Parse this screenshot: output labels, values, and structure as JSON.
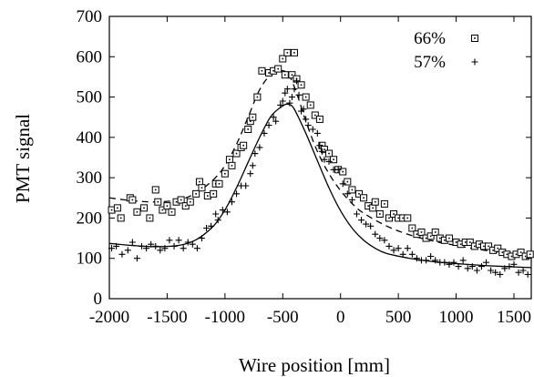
{
  "chart_data": {
    "type": "scatter",
    "xlabel": "Wire position [mm]",
    "ylabel": "PMT signal",
    "xlim": [
      -2000,
      1650
    ],
    "ylim": [
      0,
      700
    ],
    "xticks": [
      -2000,
      -1500,
      -1000,
      -500,
      0,
      500,
      1000,
      1500
    ],
    "yticks": [
      0,
      100,
      200,
      300,
      400,
      500,
      600,
      700
    ],
    "grid": false,
    "legend": {
      "position": "top-right"
    },
    "series": [
      {
        "name": "66%",
        "marker": "square-dot",
        "points": [
          [
            -1980,
            220
          ],
          [
            -1930,
            225
          ],
          [
            -1900,
            200
          ],
          [
            -1820,
            250
          ],
          [
            -1800,
            245
          ],
          [
            -1760,
            215
          ],
          [
            -1700,
            225
          ],
          [
            -1650,
            200
          ],
          [
            -1600,
            270
          ],
          [
            -1580,
            240
          ],
          [
            -1540,
            220
          ],
          [
            -1500,
            230
          ],
          [
            -1460,
            215
          ],
          [
            -1420,
            240
          ],
          [
            -1380,
            245
          ],
          [
            -1340,
            230
          ],
          [
            -1300,
            240
          ],
          [
            -1250,
            260
          ],
          [
            -1220,
            290
          ],
          [
            -1200,
            275
          ],
          [
            -1150,
            255
          ],
          [
            -1100,
            260
          ],
          [
            -1080,
            285
          ],
          [
            -1050,
            285
          ],
          [
            -1000,
            310
          ],
          [
            -960,
            345
          ],
          [
            -940,
            330
          ],
          [
            -900,
            360
          ],
          [
            -860,
            375
          ],
          [
            -840,
            380
          ],
          [
            -800,
            420
          ],
          [
            -780,
            440
          ],
          [
            -760,
            450
          ],
          [
            -720,
            500
          ],
          [
            -680,
            565
          ],
          [
            -620,
            560
          ],
          [
            -580,
            565
          ],
          [
            -540,
            570
          ],
          [
            -500,
            595
          ],
          [
            -480,
            555
          ],
          [
            -460,
            610
          ],
          [
            -420,
            555
          ],
          [
            -400,
            610
          ],
          [
            -380,
            545
          ],
          [
            -340,
            530
          ],
          [
            -300,
            500
          ],
          [
            -260,
            480
          ],
          [
            -220,
            455
          ],
          [
            -180,
            445
          ],
          [
            -160,
            380
          ],
          [
            -140,
            370
          ],
          [
            -100,
            360
          ],
          [
            -60,
            345
          ],
          [
            -20,
            320
          ],
          [
            20,
            315
          ],
          [
            60,
            290
          ],
          [
            100,
            270
          ],
          [
            160,
            260
          ],
          [
            200,
            250
          ],
          [
            240,
            230
          ],
          [
            280,
            225
          ],
          [
            300,
            240
          ],
          [
            340,
            210
          ],
          [
            380,
            235
          ],
          [
            420,
            200
          ],
          [
            460,
            210
          ],
          [
            500,
            200
          ],
          [
            540,
            200
          ],
          [
            580,
            200
          ],
          [
            620,
            175
          ],
          [
            660,
            160
          ],
          [
            700,
            165
          ],
          [
            740,
            150
          ],
          [
            780,
            155
          ],
          [
            820,
            165
          ],
          [
            860,
            150
          ],
          [
            900,
            145
          ],
          [
            940,
            150
          ],
          [
            1000,
            140
          ],
          [
            1040,
            135
          ],
          [
            1080,
            140
          ],
          [
            1120,
            140
          ],
          [
            1160,
            130
          ],
          [
            1200,
            135
          ],
          [
            1240,
            130
          ],
          [
            1280,
            130
          ],
          [
            1320,
            120
          ],
          [
            1360,
            125
          ],
          [
            1400,
            115
          ],
          [
            1440,
            110
          ],
          [
            1480,
            105
          ],
          [
            1520,
            110
          ],
          [
            1560,
            115
          ],
          [
            1600,
            105
          ],
          [
            1640,
            110
          ]
        ],
        "fit": [
          [
            -2000,
            250
          ],
          [
            -1800,
            243
          ],
          [
            -1600,
            240
          ],
          [
            -1400,
            245
          ],
          [
            -1250,
            262
          ],
          [
            -1100,
            295
          ],
          [
            -1000,
            330
          ],
          [
            -900,
            383
          ],
          [
            -800,
            450
          ],
          [
            -700,
            518
          ],
          [
            -600,
            557
          ],
          [
            -520,
            566
          ],
          [
            -450,
            556
          ],
          [
            -380,
            510
          ],
          [
            -300,
            440
          ],
          [
            -200,
            365
          ],
          [
            -100,
            310
          ],
          [
            0,
            268
          ],
          [
            100,
            236
          ],
          [
            200,
            212
          ],
          [
            400,
            180
          ],
          [
            600,
            158
          ],
          [
            800,
            143
          ],
          [
            1000,
            132
          ],
          [
            1200,
            122
          ],
          [
            1400,
            114
          ],
          [
            1650,
            106
          ]
        ]
      },
      {
        "name": "57%",
        "marker": "plus",
        "points": [
          [
            -1980,
            125
          ],
          [
            -1940,
            130
          ],
          [
            -1890,
            110
          ],
          [
            -1840,
            120
          ],
          [
            -1800,
            140
          ],
          [
            -1760,
            100
          ],
          [
            -1720,
            130
          ],
          [
            -1680,
            125
          ],
          [
            -1640,
            135
          ],
          [
            -1600,
            130
          ],
          [
            -1560,
            120
          ],
          [
            -1520,
            125
          ],
          [
            -1480,
            145
          ],
          [
            -1440,
            130
          ],
          [
            -1400,
            145
          ],
          [
            -1360,
            125
          ],
          [
            -1320,
            140
          ],
          [
            -1280,
            135
          ],
          [
            -1240,
            125
          ],
          [
            -1200,
            150
          ],
          [
            -1160,
            175
          ],
          [
            -1120,
            180
          ],
          [
            -1080,
            210
          ],
          [
            -1060,
            195
          ],
          [
            -1020,
            220
          ],
          [
            -980,
            215
          ],
          [
            -940,
            240
          ],
          [
            -900,
            260
          ],
          [
            -860,
            280
          ],
          [
            -820,
            280
          ],
          [
            -780,
            310
          ],
          [
            -760,
            330
          ],
          [
            -740,
            360
          ],
          [
            -700,
            375
          ],
          [
            -660,
            410
          ],
          [
            -620,
            430
          ],
          [
            -580,
            450
          ],
          [
            -560,
            440
          ],
          [
            -520,
            480
          ],
          [
            -500,
            490
          ],
          [
            -480,
            510
          ],
          [
            -460,
            520
          ],
          [
            -440,
            485
          ],
          [
            -420,
            500
          ],
          [
            -400,
            520
          ],
          [
            -380,
            540
          ],
          [
            -360,
            505
          ],
          [
            -340,
            465
          ],
          [
            -320,
            470
          ],
          [
            -300,
            445
          ],
          [
            -280,
            430
          ],
          [
            -240,
            420
          ],
          [
            -200,
            410
          ],
          [
            -180,
            380
          ],
          [
            -160,
            365
          ],
          [
            -140,
            345
          ],
          [
            -100,
            340
          ],
          [
            -60,
            320
          ],
          [
            -20,
            320
          ],
          [
            20,
            285
          ],
          [
            60,
            260
          ],
          [
            100,
            245
          ],
          [
            140,
            210
          ],
          [
            180,
            195
          ],
          [
            220,
            185
          ],
          [
            260,
            180
          ],
          [
            300,
            160
          ],
          [
            340,
            150
          ],
          [
            380,
            145
          ],
          [
            420,
            130
          ],
          [
            460,
            120
          ],
          [
            500,
            125
          ],
          [
            540,
            110
          ],
          [
            580,
            125
          ],
          [
            620,
            110
          ],
          [
            660,
            100
          ],
          [
            700,
            95
          ],
          [
            740,
            95
          ],
          [
            780,
            105
          ],
          [
            820,
            95
          ],
          [
            860,
            90
          ],
          [
            900,
            90
          ],
          [
            940,
            85
          ],
          [
            980,
            90
          ],
          [
            1020,
            80
          ],
          [
            1060,
            95
          ],
          [
            1100,
            75
          ],
          [
            1140,
            80
          ],
          [
            1180,
            70
          ],
          [
            1220,
            80
          ],
          [
            1260,
            90
          ],
          [
            1300,
            70
          ],
          [
            1340,
            65
          ],
          [
            1380,
            60
          ],
          [
            1420,
            75
          ],
          [
            1460,
            80
          ],
          [
            1500,
            85
          ],
          [
            1540,
            65
          ],
          [
            1580,
            70
          ],
          [
            1620,
            60
          ]
        ],
        "fit": [
          [
            -2000,
            137
          ],
          [
            -1800,
            132
          ],
          [
            -1600,
            129
          ],
          [
            -1400,
            132
          ],
          [
            -1250,
            146
          ],
          [
            -1100,
            180
          ],
          [
            -1000,
            220
          ],
          [
            -900,
            275
          ],
          [
            -800,
            338
          ],
          [
            -700,
            400
          ],
          [
            -600,
            453
          ],
          [
            -500,
            478
          ],
          [
            -450,
            482
          ],
          [
            -400,
            470
          ],
          [
            -300,
            410
          ],
          [
            -200,
            342
          ],
          [
            -100,
            275
          ],
          [
            0,
            218
          ],
          [
            100,
            175
          ],
          [
            200,
            145
          ],
          [
            300,
            125
          ],
          [
            400,
            112
          ],
          [
            600,
            100
          ],
          [
            800,
            92
          ],
          [
            1000,
            87
          ],
          [
            1200,
            83
          ],
          [
            1400,
            80
          ],
          [
            1650,
            77
          ]
        ]
      }
    ]
  }
}
